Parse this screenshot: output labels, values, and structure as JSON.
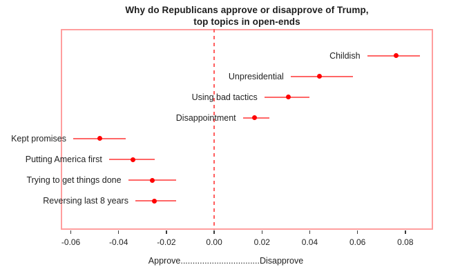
{
  "title": {
    "line1": "Why do Republicans approve or disapprove of Trump,",
    "line2": "top topics in open-ends"
  },
  "chart_data": {
    "type": "scatter",
    "subtype": "dot-plot-with-confidence-intervals",
    "title": "Why do Republicans approve or disapprove of Trump, top topics in open-ends",
    "xlabel": "Approve.................................Disapprove",
    "ylabel": "",
    "xlim": [
      -0.0642,
      0.0916
    ],
    "x_ticks": [
      -0.06,
      -0.04,
      -0.02,
      0,
      0.02,
      0.04,
      0.06,
      0.08
    ],
    "x_tick_labels": [
      "-0.06",
      "-0.04",
      "-0.02",
      "0.00",
      "0.02",
      "0.04",
      "0.06",
      "0.08"
    ],
    "zero_line": {
      "x": 0,
      "style": "dashed"
    },
    "grid": false,
    "legend": false,
    "points": [
      {
        "label": "Childish",
        "value": 0.076,
        "ci": [
          0.064,
          0.086
        ]
      },
      {
        "label": "Unpresidential",
        "value": 0.044,
        "ci": [
          0.032,
          0.058
        ]
      },
      {
        "label": "Using bad tactics",
        "value": 0.031,
        "ci": [
          0.021,
          0.04
        ]
      },
      {
        "label": "Disappointment",
        "value": 0.017,
        "ci": [
          0.012,
          0.023
        ]
      },
      {
        "label": "Kept promises",
        "value": -0.048,
        "ci": [
          -0.059,
          -0.037
        ]
      },
      {
        "label": "Putting America first",
        "value": -0.034,
        "ci": [
          -0.044,
          -0.025
        ]
      },
      {
        "label": "Trying to get things done",
        "value": -0.026,
        "ci": [
          -0.036,
          -0.016
        ]
      },
      {
        "label": "Reversing last 8 years",
        "value": -0.025,
        "ci": [
          -0.033,
          -0.016
        ]
      }
    ],
    "colors": {
      "point": "#ff0000",
      "ci_line": "#ff6666",
      "box_border": "#ff9e9e",
      "zero_line": "#ff5c5c",
      "tick": "#3a3a3a",
      "text": "#1f1f1f"
    }
  }
}
